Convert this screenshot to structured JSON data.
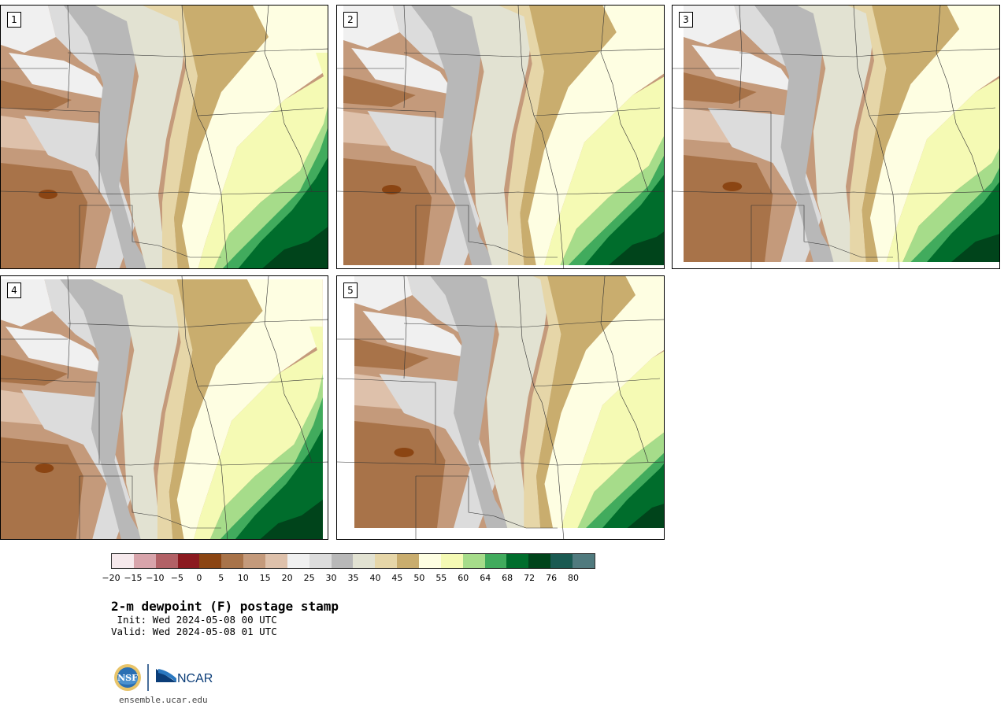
{
  "panels": [
    {
      "label": "1"
    },
    {
      "label": "2"
    },
    {
      "label": "3"
    },
    {
      "label": "4"
    },
    {
      "label": "5"
    }
  ],
  "legend": {
    "colors": [
      "#f6e9ec",
      "#d8a4ab",
      "#b26166",
      "#8b1a20",
      "#8b4513",
      "#a87349",
      "#c49a7b",
      "#dec1ab",
      "#f0f0f0",
      "#dcdcdc",
      "#b8b8b8",
      "#e2e2d2",
      "#e6d6a8",
      "#c9ad6e",
      "#fefee2",
      "#f5fab4",
      "#a6dc8a",
      "#41ab5d",
      "#006d2c",
      "#00441b",
      "#1a5a52",
      "#507a7e"
    ],
    "tick_labels": [
      "−20",
      "−15",
      "−10",
      "−5",
      "0",
      "5",
      "10",
      "15",
      "20",
      "25",
      "30",
      "35",
      "40",
      "45",
      "50",
      "55",
      "60",
      "64",
      "68",
      "72",
      "76",
      "80"
    ]
  },
  "title": "2-m dewpoint (F) postage stamp",
  "init_line": " Init: Wed 2024-05-08 00 UTC",
  "valid_line": "Valid: Wed 2024-05-08 01 UTC",
  "logo": {
    "nsf_text": "NSF",
    "ncar_text": "NCAR"
  },
  "website": "ensemble.ucar.edu"
}
